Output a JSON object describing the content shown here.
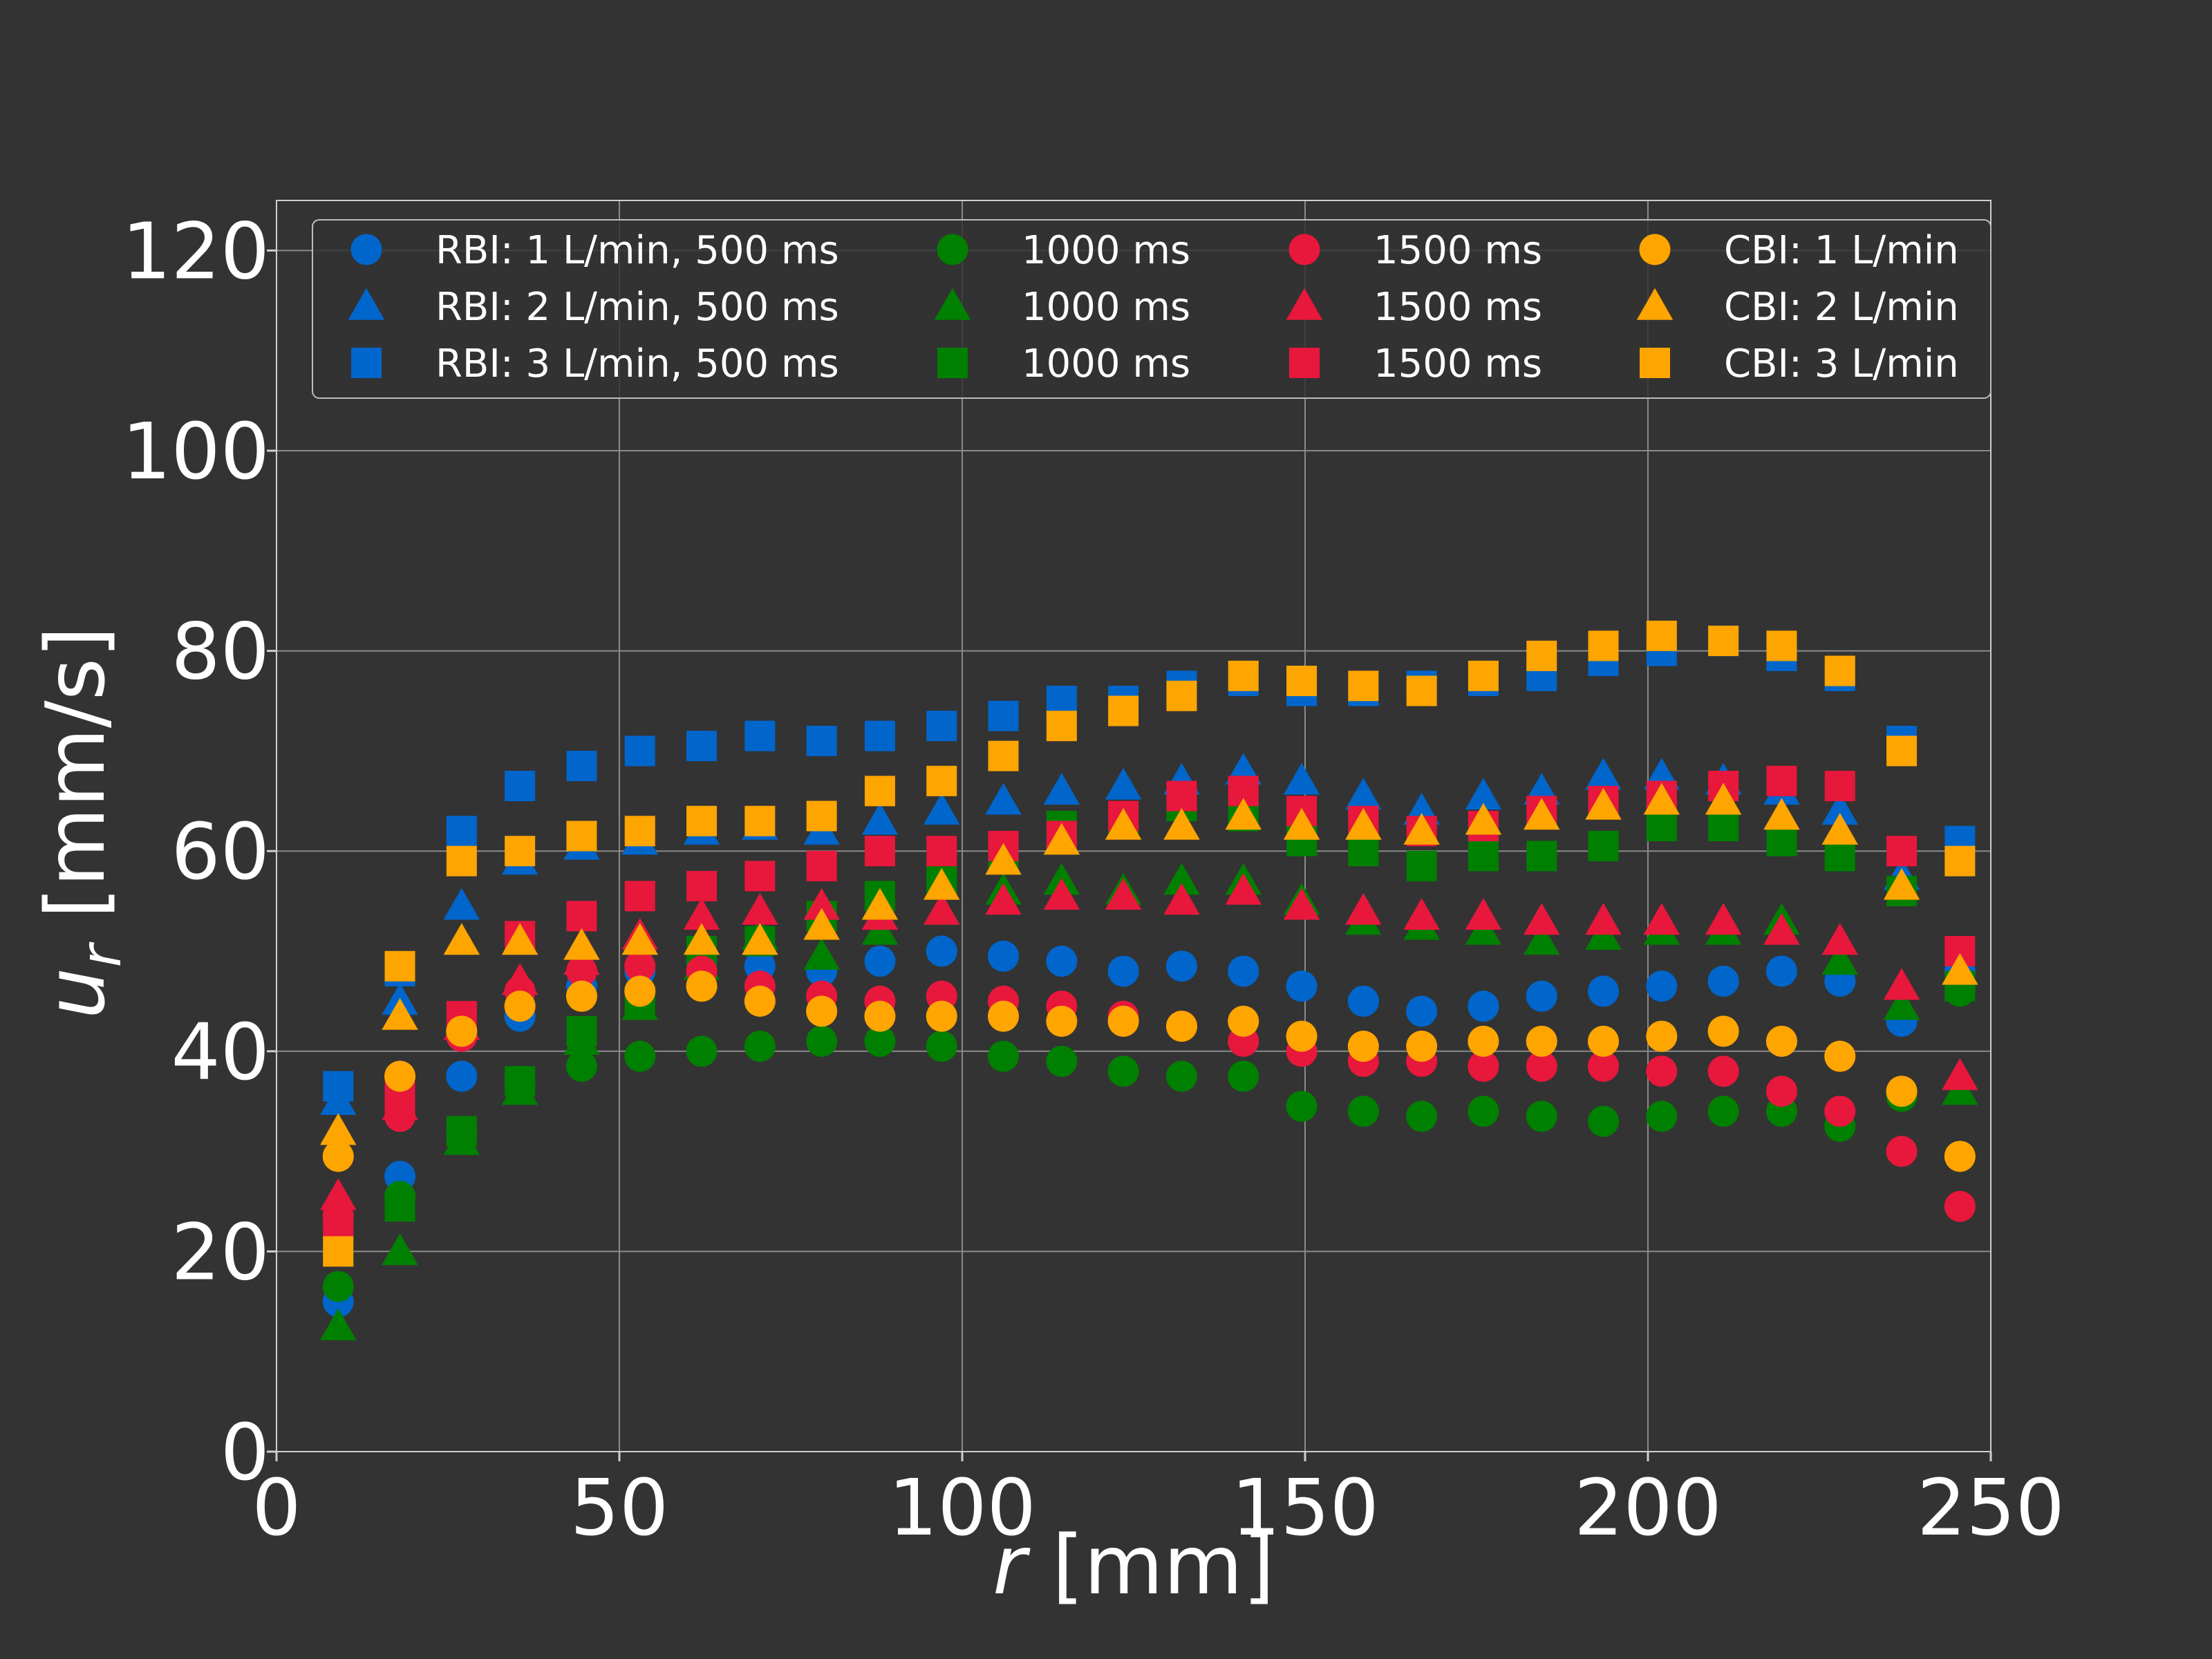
{
  "chart_data": {
    "type": "scatter",
    "xlabel": "r [mm]",
    "xlabel_var": "r",
    "xlabel_unit": " [mm]",
    "ylabel": "u_r [mm/s]",
    "ylabel_var": "u",
    "ylabel_sub": "r",
    "ylabel_unit": " [mm/s]",
    "xlim": [
      0,
      250
    ],
    "ylim": [
      0,
      125
    ],
    "xticks": [
      0,
      50,
      100,
      150,
      200,
      250
    ],
    "yticks": [
      0,
      20,
      40,
      60,
      80,
      100,
      120
    ],
    "grid": true,
    "legend_position": "top",
    "legend_columns": 4,
    "x": [
      9,
      18,
      27,
      35.5,
      44.5,
      53,
      62,
      70.5,
      79.5,
      88,
      97,
      106,
      114.5,
      123.5,
      132,
      141,
      149.5,
      158.5,
      167,
      176,
      184.5,
      193.5,
      202,
      211,
      219.5,
      228,
      237,
      245.5
    ],
    "series": [
      {
        "name": "RBI: 1 L/min, 500 ms",
        "color": "#0066cc",
        "marker": "circle",
        "values": [
          15,
          27.5,
          37.5,
          43.5,
          46.5,
          48,
          49,
          48.5,
          48,
          49,
          50,
          49.5,
          49,
          48,
          48.5,
          48,
          46.5,
          45,
          44,
          44.5,
          45.5,
          46,
          46.5,
          47,
          48,
          47,
          43,
          48
        ]
      },
      {
        "name": "RBI: 2 L/min, 500 ms",
        "color": "#0066cc",
        "marker": "triangle",
        "values": [
          35,
          45,
          54.5,
          59,
          60.5,
          61,
          62,
          62.5,
          62,
          63,
          64,
          65,
          66,
          66.5,
          67,
          68,
          67,
          65.5,
          64,
          65.5,
          66,
          67.5,
          67.5,
          67,
          66,
          64,
          57.5,
          48
        ]
      },
      {
        "name": "RBI: 3 L/min, 500 ms",
        "color": "#0066cc",
        "marker": "square",
        "values": [
          36.5,
          48,
          62,
          66.5,
          68.5,
          70,
          70.5,
          71.5,
          71,
          71.5,
          72.5,
          73.5,
          75,
          75,
          76.5,
          77,
          76,
          76,
          76.5,
          77,
          77.5,
          79,
          80,
          81,
          79.5,
          77.5,
          71,
          61
        ]
      },
      {
        "name": "1000 ms",
        "color": "#008000",
        "marker": "circle",
        "values": [
          16.5,
          25.5,
          32,
          37,
          38.5,
          39.5,
          40,
          40.5,
          41,
          41,
          40.5,
          39.5,
          39,
          38,
          37.5,
          37.5,
          34.5,
          34,
          33.5,
          34,
          33.5,
          33,
          33.5,
          34,
          34,
          32.5,
          35.5,
          46
        ]
      },
      {
        "name": "1000 ms",
        "color": "#008000",
        "marker": "triangle",
        "values": [
          12.5,
          20,
          31,
          36,
          41,
          44.5,
          48.5,
          51.5,
          49.5,
          52,
          54,
          56,
          57,
          56,
          57,
          57,
          55,
          53,
          52.5,
          52,
          51,
          51.5,
          52,
          52,
          53,
          49,
          44.5,
          36
        ]
      },
      {
        "name": "1000 ms",
        "color": "#008000",
        "marker": "square",
        "values": [
          20,
          24.5,
          32,
          37,
          42,
          45,
          50,
          51,
          53.5,
          55.5,
          57,
          59.5,
          62.5,
          63,
          64.5,
          63.5,
          61,
          60,
          58.5,
          59.5,
          59.5,
          60.5,
          62.5,
          62.5,
          61,
          59.5,
          56,
          46.5
        ]
      },
      {
        "name": "1500 ms",
        "color": "#e8173c",
        "marker": "circle",
        "values": [
          23.5,
          33.5,
          41.5,
          46,
          48,
          48.5,
          48,
          46.5,
          45.5,
          45,
          45.5,
          45,
          44.5,
          43.5,
          42.5,
          41,
          40,
          39,
          39,
          38.5,
          38.5,
          38.5,
          38,
          38,
          36,
          34,
          30,
          24.5
        ]
      },
      {
        "name": "1500 ms",
        "color": "#e8173c",
        "marker": "triangle",
        "values": [
          25.5,
          34.5,
          42.5,
          47,
          49,
          51.5,
          53.5,
          54,
          54.5,
          53.5,
          54,
          55,
          55.5,
          55.5,
          55,
          56,
          54.5,
          54,
          53.5,
          53.5,
          53,
          53,
          53,
          53,
          52,
          51,
          46.5,
          37.5
        ]
      },
      {
        "name": "1500 ms",
        "color": "#e8173c",
        "marker": "square",
        "values": [
          22.5,
          35.5,
          43.5,
          51.5,
          53.5,
          55.5,
          56.5,
          57.5,
          58.5,
          60,
          60,
          60.5,
          61.5,
          63.5,
          65.5,
          66,
          64,
          63,
          62,
          62.5,
          64,
          65,
          65.5,
          66.5,
          67,
          66.5,
          60,
          50
        ]
      },
      {
        "name": "CBI: 1 L/min",
        "color": "#ffa500",
        "marker": "circle",
        "values": [
          29.5,
          37.5,
          42,
          44.5,
          45.5,
          46,
          46.5,
          45,
          44,
          43.5,
          43.5,
          43.5,
          43,
          43,
          42.5,
          43,
          41.5,
          40.5,
          40.5,
          41,
          41,
          41,
          41.5,
          42,
          41,
          39.5,
          36,
          29.5
        ]
      },
      {
        "name": "CBI: 2 L/min",
        "color": "#ffa500",
        "marker": "triangle",
        "values": [
          32,
          43.5,
          51,
          51,
          50.5,
          51,
          51,
          51,
          52.5,
          54.5,
          56.5,
          59,
          61,
          62.5,
          62.5,
          63.5,
          62.5,
          62.5,
          62,
          63,
          63.5,
          64.5,
          65,
          65,
          63.5,
          62,
          56.5,
          48
        ]
      },
      {
        "name": "CBI: 3 L/min",
        "color": "#ffa500",
        "marker": "square",
        "values": [
          20,
          48.5,
          59,
          60,
          61.5,
          62,
          63,
          63,
          63.5,
          66,
          67,
          69.5,
          72.5,
          74,
          75.5,
          77.5,
          77,
          76.5,
          76,
          77.5,
          79.5,
          80.5,
          81.5,
          81,
          80.5,
          78,
          70,
          59
        ]
      }
    ]
  }
}
